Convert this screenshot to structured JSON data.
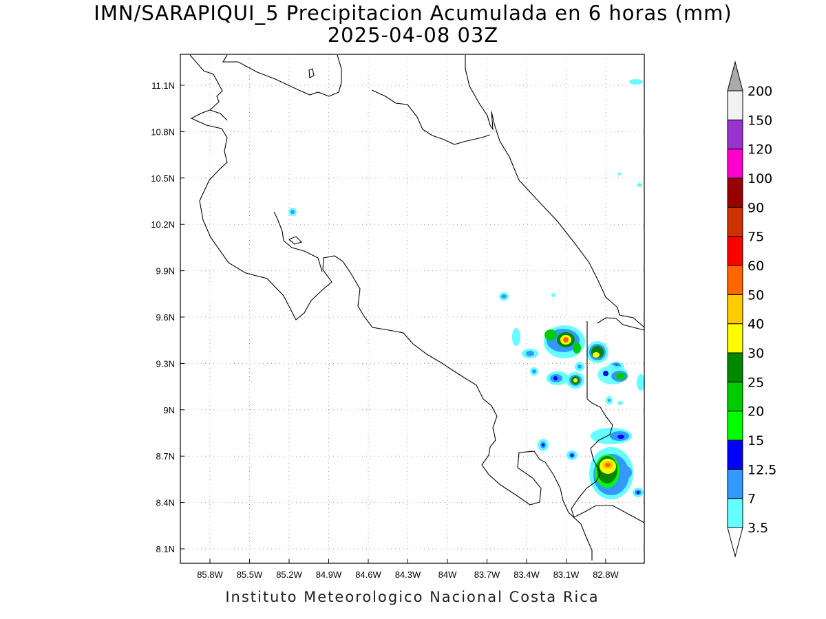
{
  "title": "IMN/SARAPIQUI_5 Precipitacion Acumulada en 6 horas (mm)",
  "subtitle": "2025-04-08 03Z",
  "footer": "Instituto Meteorologico Nacional Costa Rica",
  "map": {
    "lon_range": [
      -86.0,
      -82.63
    ],
    "lat_range": [
      8.0,
      11.32
    ],
    "lat_ticks": [
      "11.1N",
      "10.8N",
      "10.5N",
      "10.2N",
      "9.9N",
      "9.6N",
      "9.3N",
      "9N",
      "8.7N",
      "8.4N",
      "8.1N"
    ],
    "lon_ticks": [
      "85.8W",
      "85.5W",
      "85.2W",
      "84.9W",
      "84.6W",
      "84.3W",
      "84W",
      "83.7W",
      "83.4W",
      "83.1W",
      "82.8W"
    ],
    "grid": true
  },
  "colorbar": {
    "labels": [
      "3.5",
      "7",
      "12.5",
      "15",
      "20",
      "25",
      "30",
      "40",
      "50",
      "60",
      "75",
      "90",
      "100",
      "120",
      "150",
      "200"
    ],
    "colors": [
      "#66ffff",
      "#3399ff",
      "#0000ff",
      "#00ff00",
      "#00cc00",
      "#008800",
      "#ffff00",
      "#ffcc00",
      "#ff6600",
      "#ff0000",
      "#cc3300",
      "#990000",
      "#ff00cc",
      "#9933cc",
      "#f2f2f2"
    ],
    "over_color": "#aaaaaa",
    "under_color": "#ffffff"
  }
}
